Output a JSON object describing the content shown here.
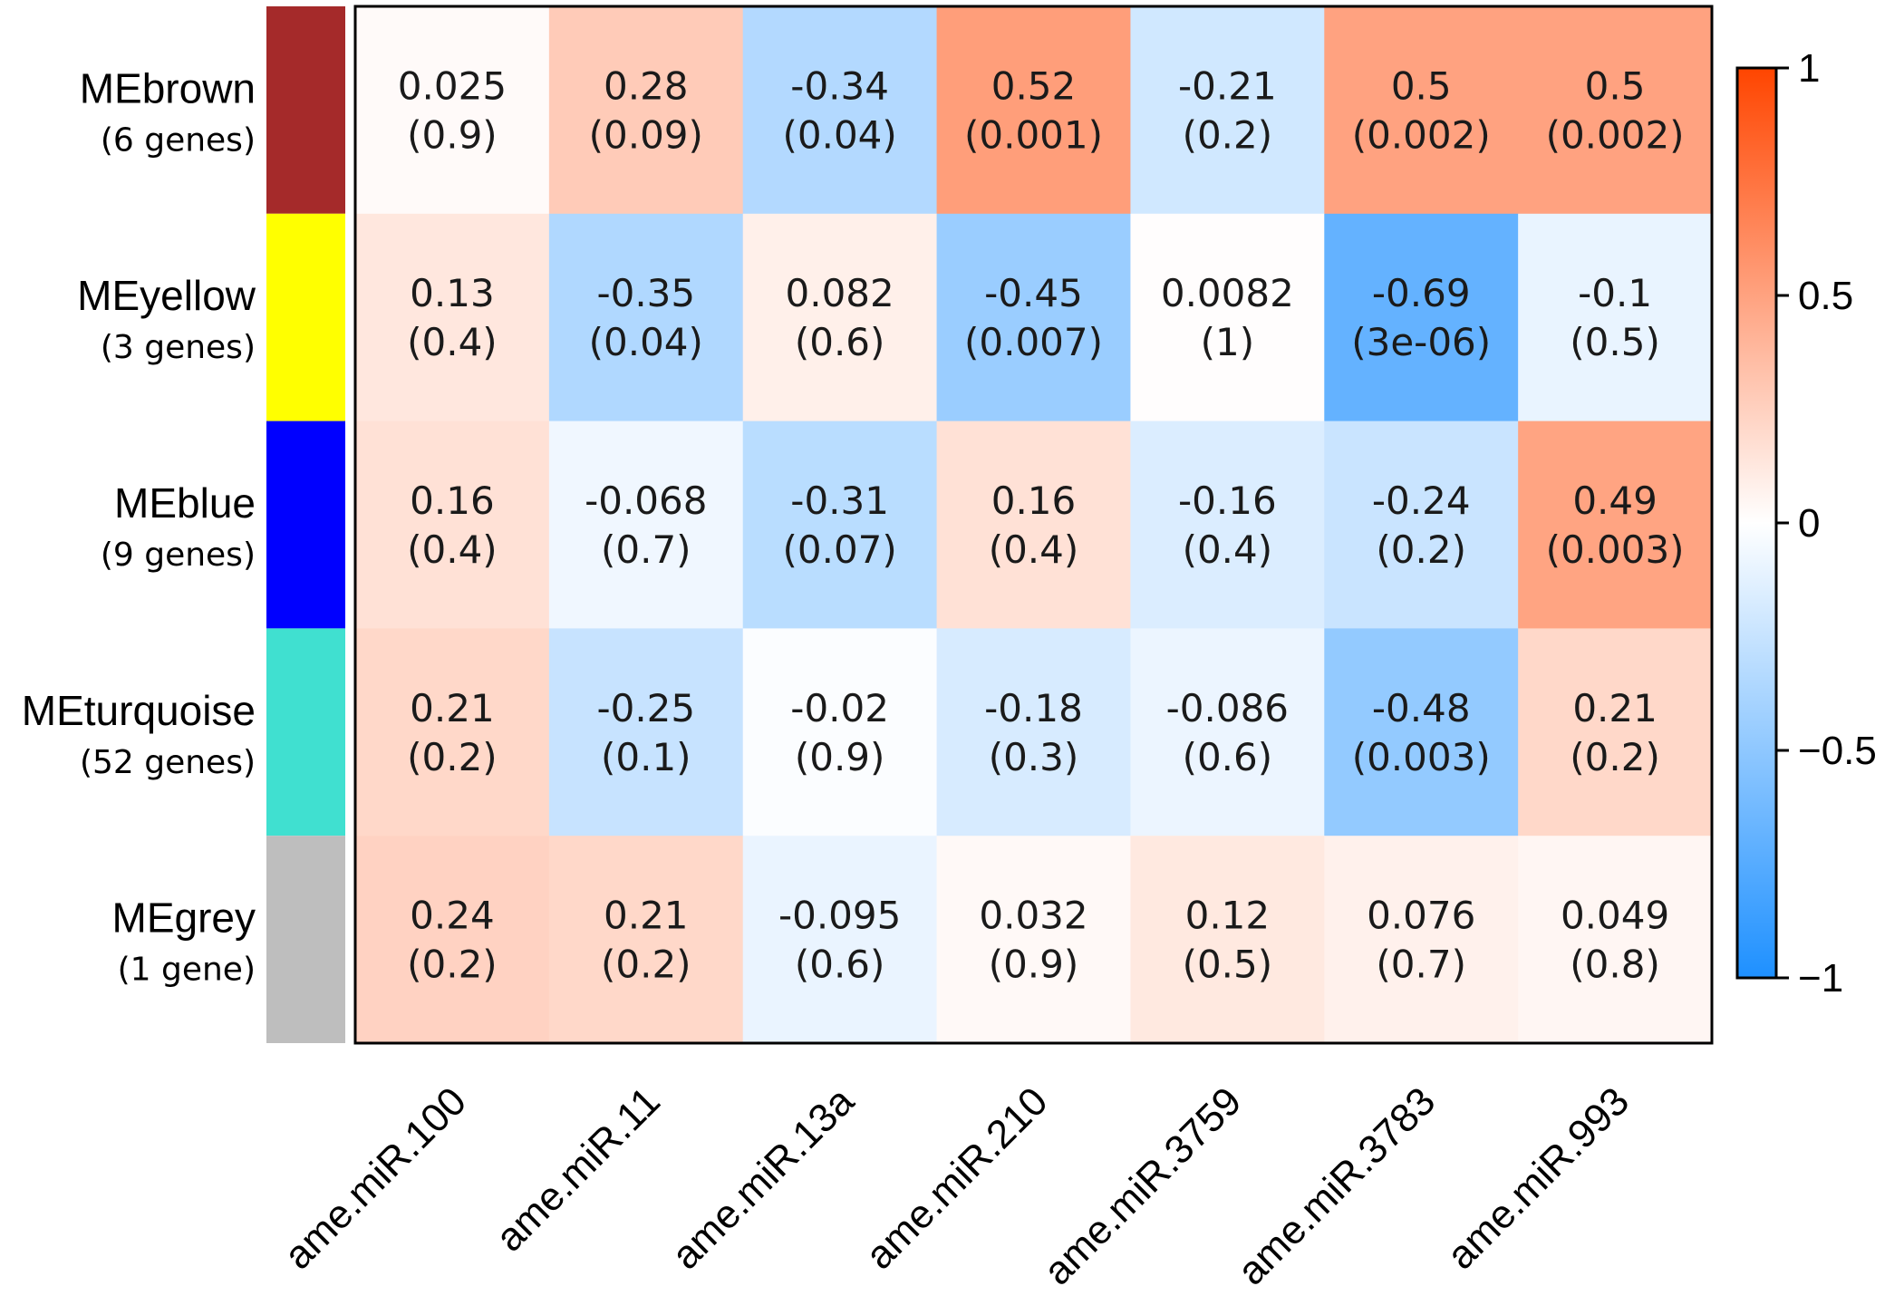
{
  "chart_data": {
    "type": "heatmap",
    "title": "",
    "rows": [
      {
        "name": "MEbrown",
        "genes": "(6 genes)",
        "color": "#A52A2A"
      },
      {
        "name": "MEyellow",
        "genes": "(3 genes)",
        "color": "#FFFF00"
      },
      {
        "name": "MEblue",
        "genes": "(9 genes)",
        "color": "#0000FF"
      },
      {
        "name": "MEturquoise",
        "genes": "(52 genes)",
        "color": "#40E0D0"
      },
      {
        "name": "MEgrey",
        "genes": "(1 gene)",
        "color": "#BEBEBE"
      }
    ],
    "columns": [
      "ame.miR.100",
      "ame.miR.11",
      "ame.miR.13a",
      "ame.miR.210",
      "ame.miR.3759",
      "ame.miR.3783",
      "ame.miR.993"
    ],
    "values": [
      [
        0.025,
        0.28,
        -0.34,
        0.52,
        -0.21,
        0.5,
        0.5
      ],
      [
        0.13,
        -0.35,
        0.082,
        -0.45,
        0.0082,
        -0.69,
        -0.1
      ],
      [
        0.16,
        -0.068,
        -0.31,
        0.16,
        -0.16,
        -0.24,
        0.49
      ],
      [
        0.21,
        -0.25,
        -0.02,
        -0.18,
        -0.086,
        -0.48,
        0.21
      ],
      [
        0.24,
        0.21,
        -0.095,
        0.032,
        0.12,
        0.076,
        0.049
      ]
    ],
    "value_labels": [
      [
        "0.025",
        "0.28",
        "-0.34",
        "0.52",
        "-0.21",
        "0.5",
        "0.5"
      ],
      [
        "0.13",
        "-0.35",
        "0.082",
        "-0.45",
        "0.0082",
        "-0.69",
        "-0.1"
      ],
      [
        "0.16",
        "-0.068",
        "-0.31",
        "0.16",
        "-0.16",
        "-0.24",
        "0.49"
      ],
      [
        "0.21",
        "-0.25",
        "-0.02",
        "-0.18",
        "-0.086",
        "-0.48",
        "0.21"
      ],
      [
        "0.24",
        "0.21",
        "-0.095",
        "0.032",
        "0.12",
        "0.076",
        "0.049"
      ]
    ],
    "pvalue_labels": [
      [
        "(0.9)",
        "(0.09)",
        "(0.04)",
        "(0.001)",
        "(0.2)",
        "(0.002)",
        "(0.002)"
      ],
      [
        "(0.4)",
        "(0.04)",
        "(0.6)",
        "(0.007)",
        "(1)",
        "(3e-06)",
        "(0.5)"
      ],
      [
        "(0.4)",
        "(0.7)",
        "(0.07)",
        "(0.4)",
        "(0.4)",
        "(0.2)",
        "(0.003)"
      ],
      [
        "(0.2)",
        "(0.1)",
        "(0.9)",
        "(0.3)",
        "(0.6)",
        "(0.003)",
        "(0.2)"
      ],
      [
        "(0.2)",
        "(0.2)",
        "(0.6)",
        "(0.9)",
        "(0.5)",
        "(0.7)",
        "(0.8)"
      ]
    ],
    "colorbar": {
      "range": [
        -1,
        1
      ],
      "ticks": [
        1,
        0.5,
        0,
        -0.5,
        -1
      ],
      "tick_labels": [
        "1",
        "0.5",
        "0",
        "−0.5",
        "−1"
      ],
      "low_color": "#1E90FF",
      "mid_color": "#FFFFFF",
      "high_color": "#FF4500"
    }
  }
}
